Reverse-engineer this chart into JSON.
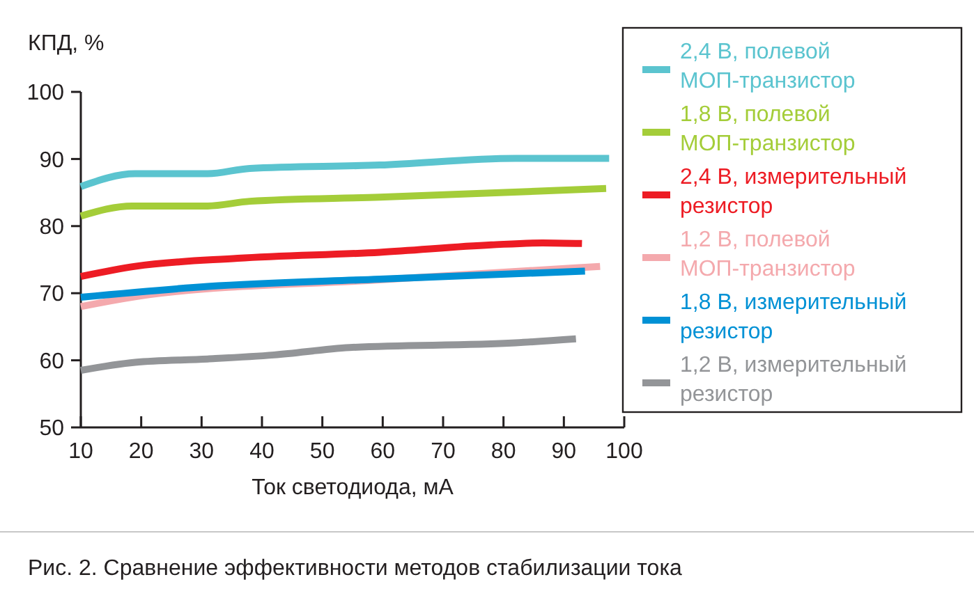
{
  "chart_data": {
    "type": "line",
    "ylabel": "КПД, %",
    "xlabel": "Ток светодиода, мА",
    "annotations": [
      "Рис. 2. Сравнение эффективности методов стабилизации тока"
    ],
    "xlim": [
      10,
      100
    ],
    "xticks": [
      10,
      20,
      30,
      40,
      50,
      60,
      70,
      80,
      90,
      100
    ],
    "ylim": [
      50,
      100
    ],
    "yticks": [
      50,
      60,
      70,
      80,
      90,
      100
    ],
    "legend": "right",
    "grid": false,
    "line_style": "solid",
    "marker": "none",
    "series": [
      {
        "name": "2,4 В, полевой МОП-транзистор",
        "color": "#5bc4cf",
        "x": [
          10,
          19,
          31,
          38,
          59.5,
          82,
          97.5
        ],
        "values": [
          85.9,
          87.8,
          87.8,
          88.6,
          89.1,
          90.1,
          90.1
        ]
      },
      {
        "name": "1,8 В, полевой МОП-транзистор",
        "color": "#a4cd39",
        "x": [
          10,
          18.5,
          31,
          38,
          59.5,
          97
        ],
        "values": [
          81.5,
          83.0,
          83.0,
          83.7,
          84.3,
          85.6
        ]
      },
      {
        "name": "2,4 В, измерительный резистор",
        "color": "#ed1c24",
        "x": [
          10,
          19,
          36,
          59.5,
          78,
          86.5,
          93
        ],
        "values": [
          72.5,
          74.0,
          75.2,
          76.1,
          77.2,
          77.5,
          77.4
        ]
      },
      {
        "name": "1,2 В, полевой МОП-транзистор",
        "color": "#f4a9ad",
        "x": [
          10,
          21.5,
          59.5,
          96
        ],
        "values": [
          68.0,
          69.8,
          72.0,
          74.0
        ]
      },
      {
        "name": "1,8 В, измерительный резистор",
        "color": "#0091d5",
        "x": [
          10,
          31,
          59.5,
          93.5
        ],
        "values": [
          69.4,
          71.0,
          72.1,
          73.3
        ]
      },
      {
        "name": "1,2 В, измерительный резистор",
        "color": "#939598",
        "x": [
          10,
          19,
          31,
          42,
          54.5,
          82,
          92
        ],
        "values": [
          58.5,
          59.7,
          60.2,
          60.8,
          61.9,
          62.6,
          63.2
        ]
      }
    ]
  }
}
